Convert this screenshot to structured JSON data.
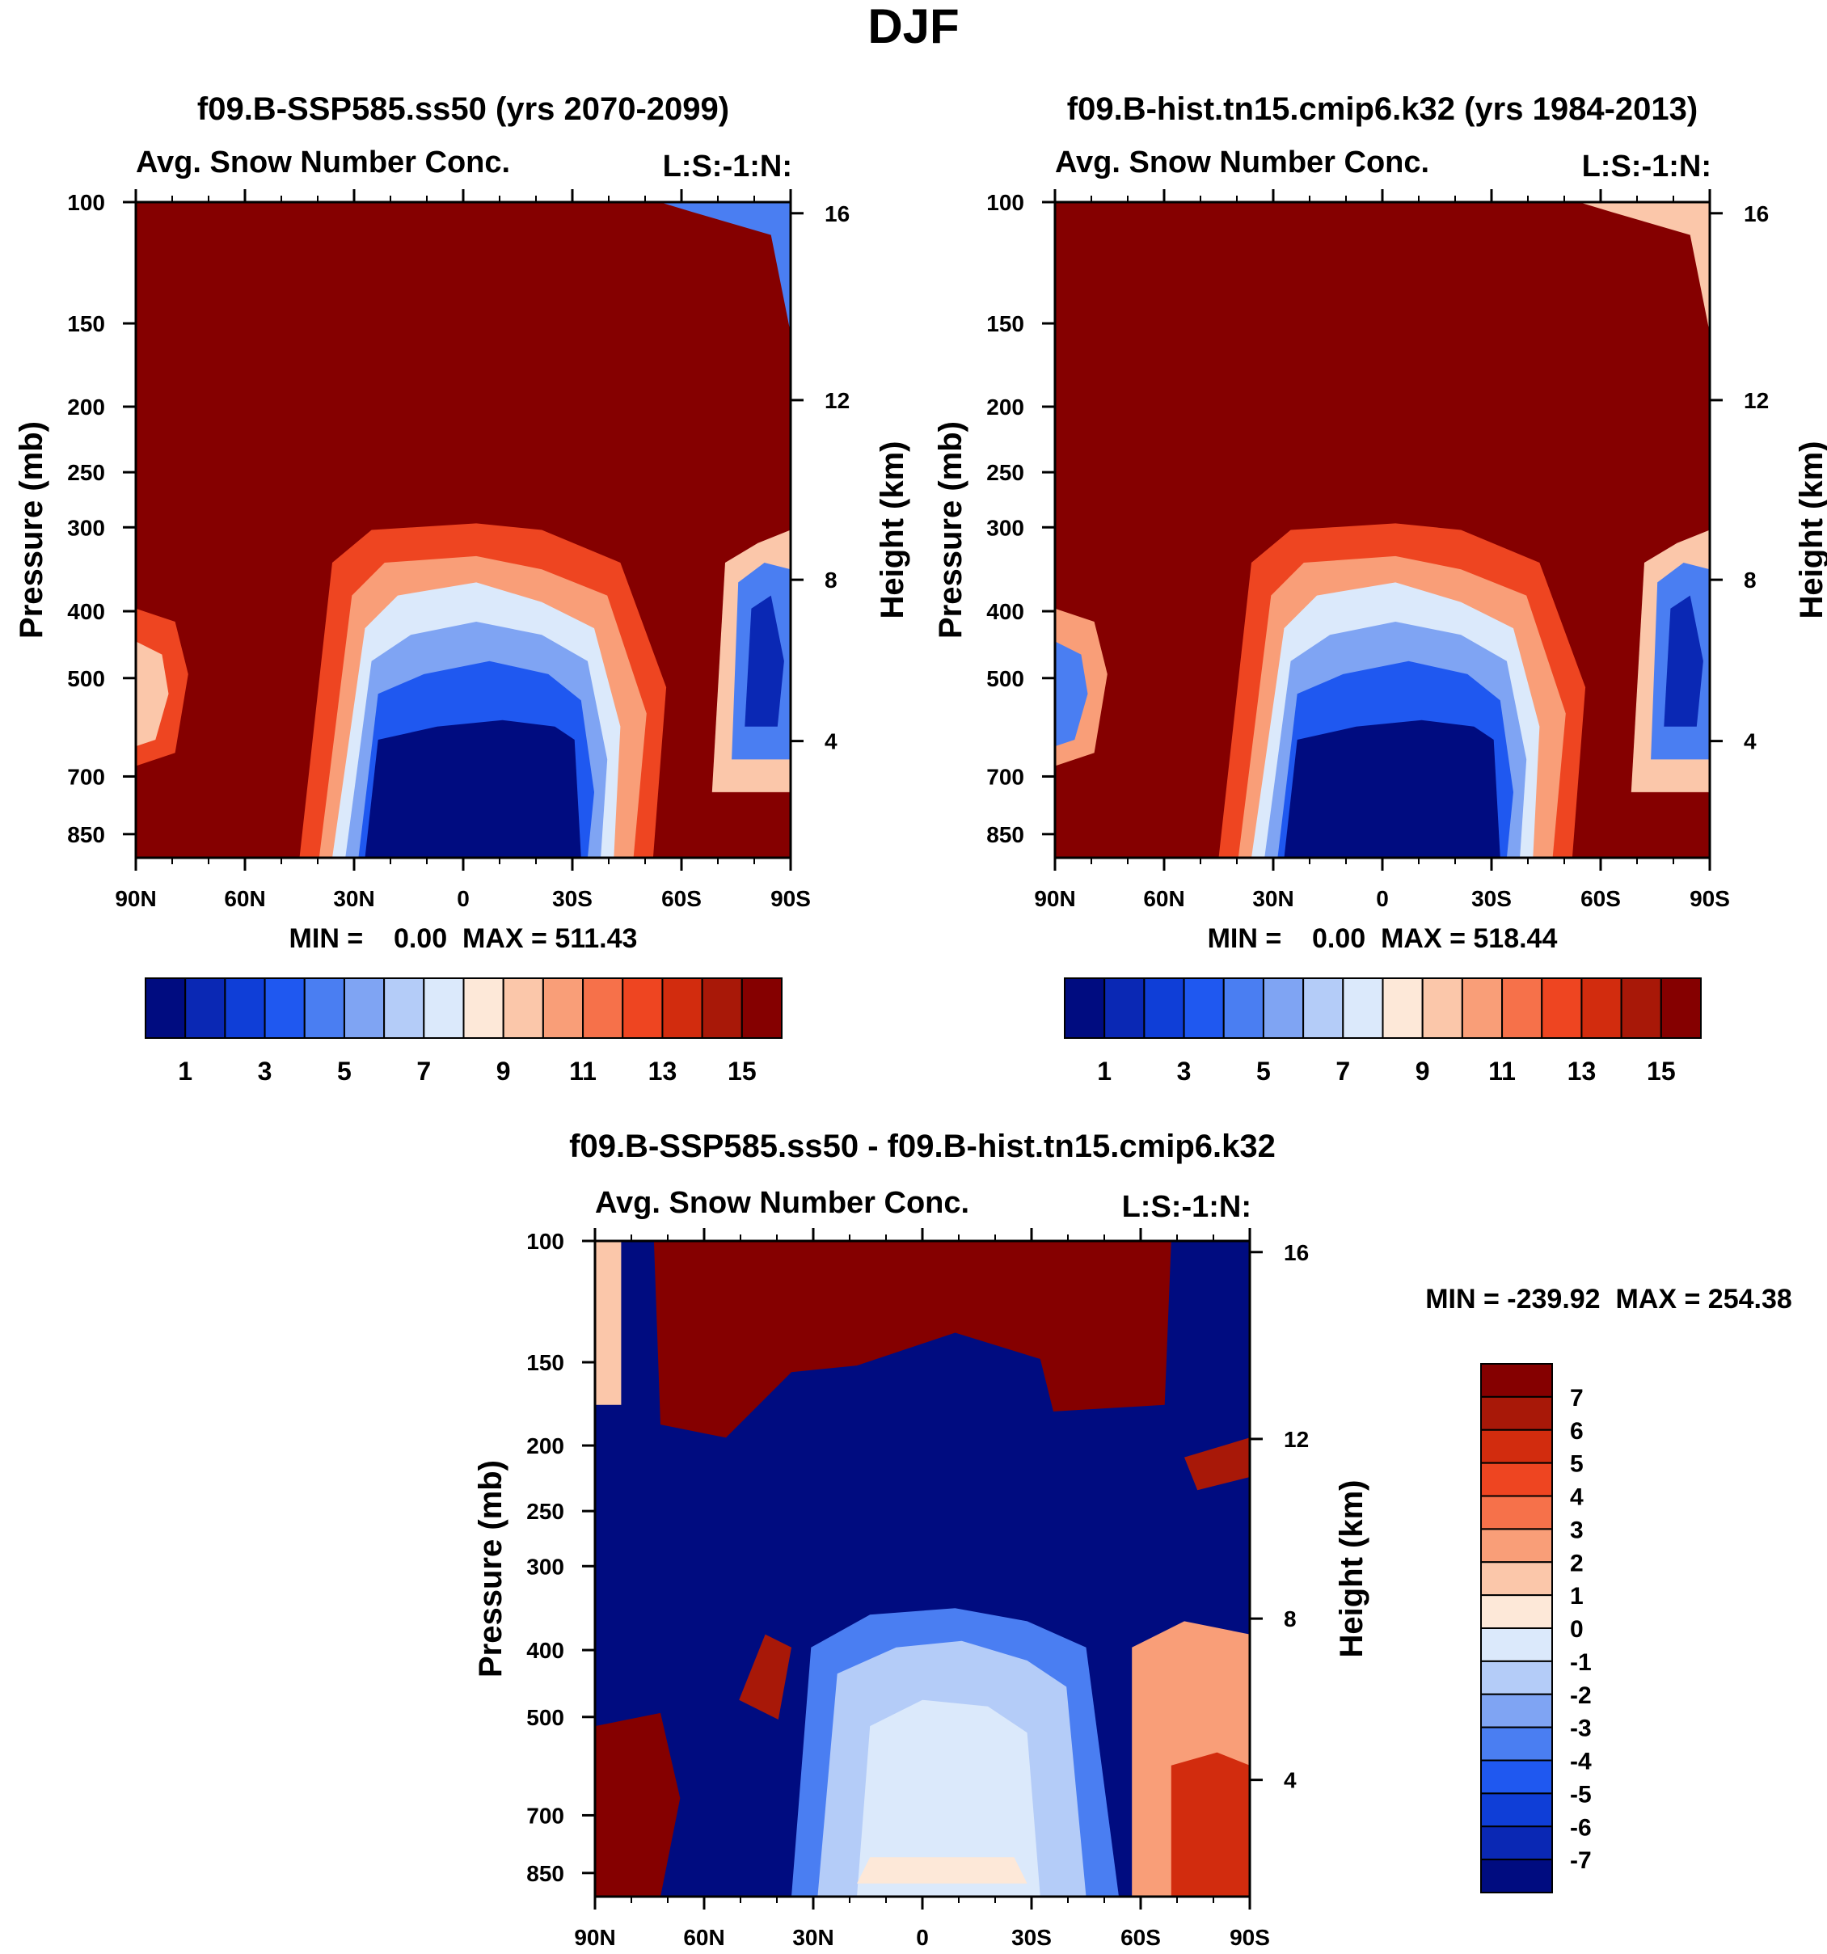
{
  "figure": {
    "title": "DJF",
    "diff_label": "MIN = -239.92  MAX = 254.38"
  },
  "chart_data": [
    {
      "type": "heatmap",
      "title": "f09.B-SSP585.ss50 (yrs 2070-2099)",
      "left_label": "Avg. Snow Number Conc.",
      "right_label": "L:S:-1:N:",
      "ylabel": "Pressure (mb)",
      "y2label": "Height (km)",
      "xticks": [
        "90N",
        "60N",
        "30N",
        "0",
        "30S",
        "60S",
        "90S"
      ],
      "yticks": [
        "100",
        "150",
        "200",
        "250",
        "300",
        "400",
        "500",
        "700",
        "850"
      ],
      "y2ticks": [
        "16",
        "12",
        "8",
        "4"
      ],
      "min_max_label": "MIN =    0.00  MAX = 511.43",
      "colorbar_labels": [
        "1",
        "3",
        "5",
        "7",
        "9",
        "11",
        "13",
        "15"
      ],
      "colorbar_colors": [
        "#000c80",
        "#0a28b4",
        "#0f3ed7",
        "#1f58f0",
        "#4a7ef2",
        "#7fa4f3",
        "#b4ccf8",
        "#dbe9fb",
        "#fde8d8",
        "#fbc7aa",
        "#f99e78",
        "#f6714a",
        "#ee4521",
        "#d22c0e",
        "#a81808",
        "#850000"
      ]
    },
    {
      "type": "heatmap",
      "title": "f09.B-hist.tn15.cmip6.k32 (yrs 1984-2013)",
      "left_label": "Avg. Snow Number Conc.",
      "right_label": "L:S:-1:N:",
      "ylabel": "Pressure (mb)",
      "y2label": "Height (km)",
      "xticks": [
        "90N",
        "60N",
        "30N",
        "0",
        "30S",
        "60S",
        "90S"
      ],
      "yticks": [
        "100",
        "150",
        "200",
        "250",
        "300",
        "400",
        "500",
        "700",
        "850"
      ],
      "y2ticks": [
        "16",
        "12",
        "8",
        "4"
      ],
      "min_max_label": "MIN =    0.00  MAX = 518.44",
      "colorbar_labels": [
        "1",
        "3",
        "5",
        "7",
        "9",
        "11",
        "13",
        "15"
      ],
      "colorbar_colors": [
        "#000c80",
        "#0a28b4",
        "#0f3ed7",
        "#1f58f0",
        "#4a7ef2",
        "#7fa4f3",
        "#b4ccf8",
        "#dbe9fb",
        "#fde8d8",
        "#fbc7aa",
        "#f99e78",
        "#f6714a",
        "#ee4521",
        "#d22c0e",
        "#a81808",
        "#850000"
      ]
    },
    {
      "type": "heatmap",
      "title": "f09.B-SSP585.ss50 - f09.B-hist.tn15.cmip6.k32",
      "left_label": "Avg. Snow Number Conc.",
      "right_label": "L:S:-1:N:",
      "ylabel": "Pressure (mb)",
      "y2label": "Height (km)",
      "xticks": [
        "90N",
        "60N",
        "30N",
        "0",
        "30S",
        "60S",
        "90S"
      ],
      "yticks": [
        "100",
        "150",
        "200",
        "250",
        "300",
        "400",
        "500",
        "700",
        "850"
      ],
      "y2ticks": [
        "16",
        "12",
        "8",
        "4"
      ],
      "colorbar_labels": [
        "7",
        "6",
        "5",
        "4",
        "3",
        "2",
        "1",
        "0",
        "-1",
        "-2",
        "-3",
        "-4",
        "-5",
        "-6",
        "-7"
      ],
      "colorbar_colors": [
        "#850000",
        "#a81808",
        "#d22c0e",
        "#ee4521",
        "#f6714a",
        "#f99e78",
        "#fbc7aa",
        "#fde8d8",
        "#dbe9fb",
        "#b4ccf8",
        "#7fa4f3",
        "#4a7ef2",
        "#1f58f0",
        "#0f3ed7",
        "#0a28b4",
        "#000c80"
      ]
    }
  ]
}
